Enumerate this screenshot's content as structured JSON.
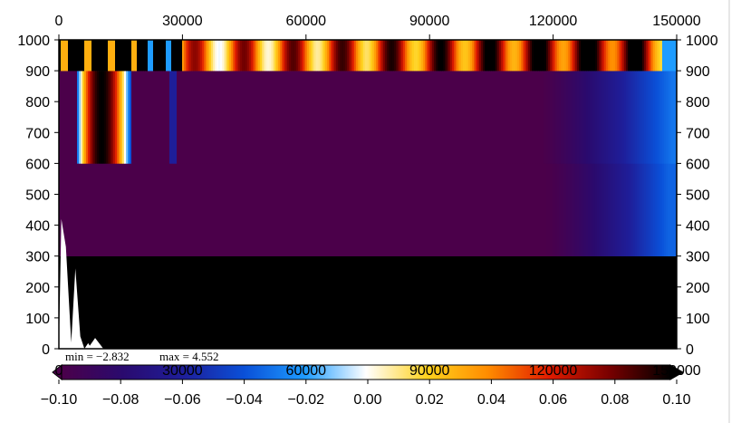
{
  "chart_data": {
    "type": "heatmap",
    "title": "",
    "xlabel": "",
    "ylabel": "",
    "xlim": [
      0,
      150000
    ],
    "ylim": [
      0,
      1000
    ],
    "x_ticks": [
      "0",
      "30000",
      "60000",
      "90000",
      "120000",
      "150000"
    ],
    "x_tick_values": [
      0,
      30000,
      60000,
      90000,
      120000,
      150000
    ],
    "y_ticks": [
      "0",
      "100",
      "200",
      "300",
      "400",
      "500",
      "600",
      "700",
      "800",
      "900",
      "1000"
    ],
    "y_tick_values": [
      0,
      100,
      200,
      300,
      400,
      500,
      600,
      700,
      800,
      900,
      1000
    ],
    "bands": [
      {
        "y_range": [
          900,
          1000
        ],
        "profile": "oscillating",
        "range": [
          -0.05,
          0.1
        ]
      },
      {
        "y_range": [
          600,
          900
        ],
        "profile": "mostly_min_with_spikes",
        "range": [
          -0.1,
          0.1
        ]
      },
      {
        "y_range": [
          300,
          600
        ],
        "profile": "min_with_ramp_at_end",
        "range": [
          -0.1,
          -0.03
        ]
      },
      {
        "y_range": [
          0,
          300
        ],
        "profile": "max_saturated",
        "value": 0.1
      }
    ],
    "stats": {
      "min_label": "min = −2.832",
      "max_label": "max = 4.552"
    },
    "colorbar": {
      "min": -0.1,
      "max": 0.1,
      "ticks": [
        "−0.10",
        "−0.08",
        "−0.06",
        "−0.04",
        "−0.02",
        "0.00",
        "0.02",
        "0.04",
        "0.06",
        "0.08",
        "0.10"
      ],
      "colors": [
        "#4b004a",
        "#2a0a6e",
        "#1e1e9a",
        "#0a50d8",
        "#1e9cff",
        "#ffffff",
        "#ffd21e",
        "#ff8c00",
        "#e11c00",
        "#780000",
        "#000000"
      ],
      "overlay_x_ticks": [
        "0",
        "30000",
        "60000",
        "90000",
        "120000",
        "150000"
      ]
    }
  }
}
